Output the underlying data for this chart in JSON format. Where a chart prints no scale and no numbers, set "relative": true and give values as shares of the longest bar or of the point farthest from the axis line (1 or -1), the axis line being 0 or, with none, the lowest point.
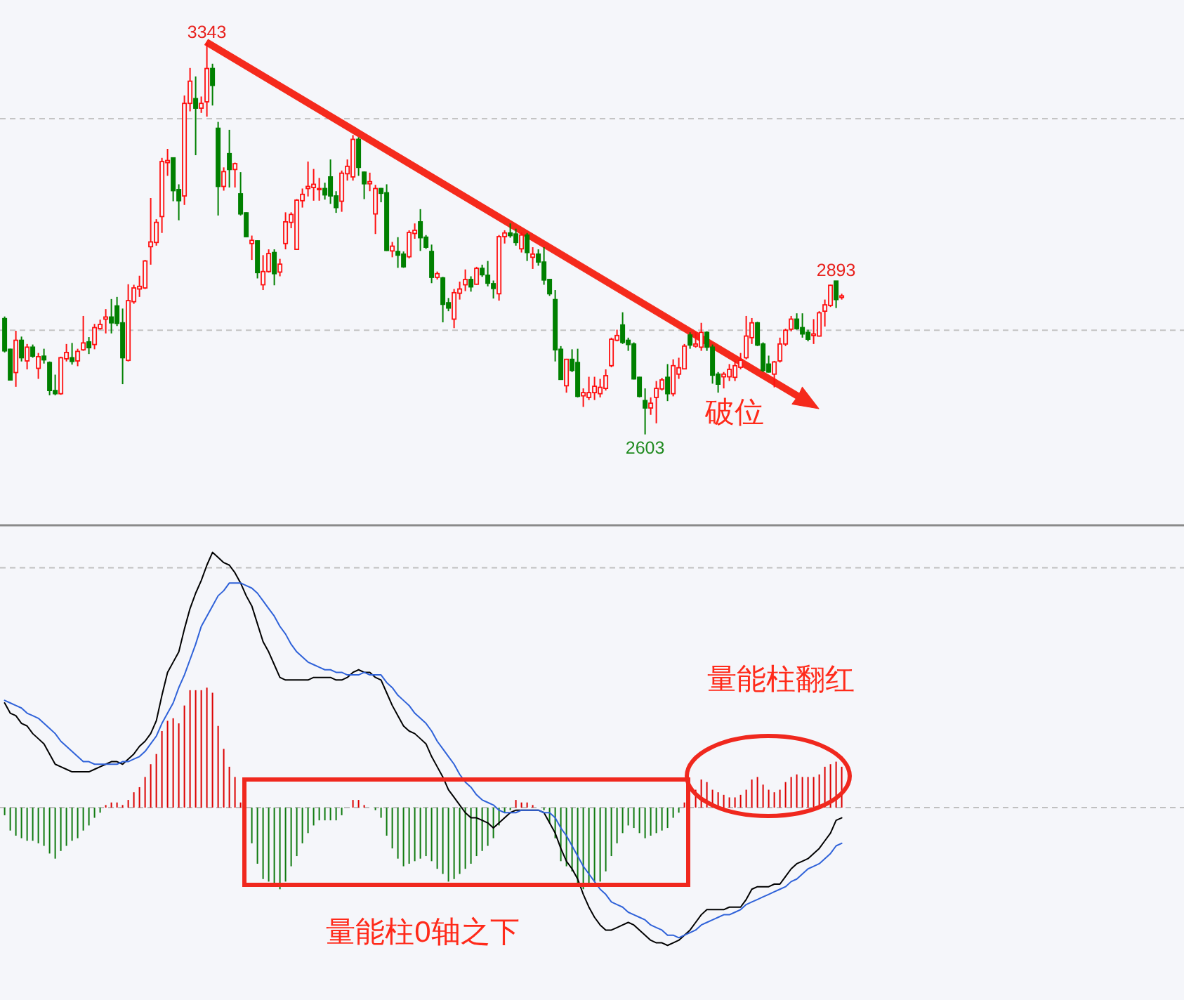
{
  "chart_data": [
    {
      "type": "candlestick",
      "categories": [
        null,
        null,
        null,
        null,
        null,
        null,
        null,
        null,
        null,
        null,
        null,
        null,
        null,
        null,
        null,
        null,
        null,
        null,
        null,
        null,
        null,
        null,
        null,
        null,
        null,
        null,
        null,
        null,
        null,
        null,
        null,
        null,
        null,
        null,
        null,
        null,
        null,
        null,
        null,
        null,
        null,
        null,
        null,
        null,
        null,
        null,
        null,
        null,
        null,
        null,
        null,
        null,
        null,
        null,
        null,
        null,
        null,
        null,
        null,
        null,
        null,
        null,
        null,
        null,
        null,
        null,
        null,
        null,
        null,
        null,
        null,
        null,
        null,
        null,
        null,
        null,
        null,
        null,
        null,
        null,
        null,
        null,
        null,
        null,
        null,
        null,
        null,
        null,
        null,
        null,
        null,
        null,
        null,
        null,
        null,
        null,
        null,
        null,
        null,
        null,
        null,
        null,
        null,
        null,
        null,
        null,
        null,
        null,
        null,
        null,
        null,
        null,
        null,
        null,
        null,
        null,
        null,
        null,
        null,
        null,
        null,
        null,
        null,
        null,
        null,
        null,
        null,
        null,
        null,
        null,
        null,
        null,
        null,
        null,
        null,
        null,
        null,
        null,
        null,
        null,
        null,
        null,
        null,
        null,
        null,
        null,
        null,
        null,
        null,
        null
      ],
      "ohlc": [
        [
          2822,
          2826,
          2758,
          2761
        ],
        [
          2764,
          2765,
          2706,
          2706
        ],
        [
          2720,
          2799,
          2693,
          2781
        ],
        [
          2781,
          2788,
          2741,
          2748
        ],
        [
          2742,
          2774,
          2726,
          2768
        ],
        [
          2768,
          2773,
          2748,
          2751
        ],
        [
          2728,
          2757,
          2708,
          2750
        ],
        [
          2751,
          2765,
          2737,
          2744
        ],
        [
          2739,
          2741,
          2677,
          2686
        ],
        [
          2686,
          2716,
          2677,
          2680
        ],
        [
          2680,
          2750,
          2678,
          2748
        ],
        [
          2746,
          2774,
          2741,
          2758
        ],
        [
          2748,
          2776,
          2735,
          2741
        ],
        [
          2742,
          2765,
          2732,
          2760
        ],
        [
          2763,
          2827,
          2761,
          2776
        ],
        [
          2778,
          2787,
          2755,
          2767
        ],
        [
          2773,
          2812,
          2764,
          2805
        ],
        [
          2803,
          2820,
          2801,
          2811
        ],
        [
          2821,
          2840,
          2794,
          2825
        ],
        [
          2825,
          2859,
          2794,
          2814
        ],
        [
          2846,
          2863,
          2808,
          2813
        ],
        [
          2814,
          2841,
          2698,
          2748
        ],
        [
          2743,
          2887,
          2741,
          2856
        ],
        [
          2854,
          2886,
          2850,
          2880
        ],
        [
          2878,
          2903,
          2863,
          2883
        ],
        [
          2880,
          2933,
          2878,
          2931
        ],
        [
          2958,
          3050,
          2924,
          2967
        ],
        [
          2966,
          3010,
          2960,
          3004
        ],
        [
          3015,
          3126,
          2984,
          3119
        ],
        [
          3117,
          3143,
          3092,
          3121
        ],
        [
          3126,
          3127,
          3044,
          3064
        ],
        [
          3066,
          3076,
          3008,
          3045
        ],
        [
          3054,
          3244,
          3037,
          3229
        ],
        [
          3229,
          3296,
          3214,
          3271
        ],
        [
          3238,
          3280,
          3131,
          3220
        ],
        [
          3220,
          3242,
          3211,
          3229
        ],
        [
          3232,
          3343,
          3204,
          3295
        ],
        [
          3295,
          3304,
          3225,
          3263
        ],
        [
          3182,
          3194,
          3017,
          3072
        ],
        [
          3072,
          3108,
          3064,
          3100
        ],
        [
          3134,
          3179,
          3070,
          3104
        ],
        [
          3104,
          3117,
          3070,
          3115
        ],
        [
          3058,
          3099,
          3017,
          3020
        ],
        [
          3022,
          3023,
          2976,
          2977
        ],
        [
          2964,
          2979,
          2933,
          2970
        ],
        [
          2969,
          2970,
          2898,
          2909
        ],
        [
          2886,
          2942,
          2876,
          2911
        ],
        [
          2911,
          2953,
          2909,
          2945
        ],
        [
          2947,
          2953,
          2885,
          2907
        ],
        [
          2910,
          2935,
          2902,
          2925
        ],
        [
          2964,
          3023,
          2953,
          3005
        ],
        [
          3004,
          3023,
          2993,
          3019
        ],
        [
          2953,
          3048,
          2952,
          3046
        ],
        [
          3045,
          3068,
          3032,
          3057
        ],
        [
          3068,
          3119,
          3053,
          3072
        ],
        [
          3070,
          3105,
          3045,
          3076
        ],
        [
          3066,
          3088,
          3045,
          3068
        ],
        [
          3068,
          3079,
          3047,
          3056
        ],
        [
          3090,
          3123,
          3039,
          3054
        ],
        [
          3054,
          3063,
          3022,
          3032
        ],
        [
          3044,
          3102,
          3024,
          3097
        ],
        [
          3096,
          3123,
          3083,
          3110
        ],
        [
          3090,
          3169,
          3083,
          3161
        ],
        [
          3161,
          3165,
          3092,
          3108
        ],
        [
          3099,
          3100,
          3048,
          3077
        ],
        [
          3077,
          3098,
          3063,
          3081
        ],
        [
          3020,
          3075,
          2982,
          3068
        ],
        [
          3068,
          3069,
          3042,
          3059
        ],
        [
          3060,
          3076,
          2950,
          2951
        ],
        [
          2950,
          2967,
          2938,
          2959
        ],
        [
          2949,
          2976,
          2918,
          2942
        ],
        [
          2944,
          2949,
          2918,
          2920
        ],
        [
          2939,
          2989,
          2936,
          2985
        ],
        [
          2983,
          3002,
          2973,
          2989
        ],
        [
          3005,
          3029,
          2950,
          2975
        ],
        [
          2976,
          2980,
          2954,
          2957
        ],
        [
          2949,
          2962,
          2889,
          2900
        ],
        [
          2900,
          2911,
          2896,
          2907
        ],
        [
          2899,
          2901,
          2815,
          2849
        ],
        [
          2852,
          2861,
          2836,
          2842
        ],
        [
          2821,
          2878,
          2804,
          2871
        ],
        [
          2870,
          2892,
          2858,
          2878
        ],
        [
          2886,
          2915,
          2874,
          2896
        ],
        [
          2896,
          2902,
          2873,
          2882
        ],
        [
          2887,
          2920,
          2886,
          2917
        ],
        [
          2917,
          2924,
          2901,
          2905
        ],
        [
          2904,
          2931,
          2883,
          2889
        ],
        [
          2888,
          2894,
          2860,
          2879
        ],
        [
          2869,
          2980,
          2856,
          2977
        ],
        [
          2977,
          2989,
          2964,
          2984
        ],
        [
          2984,
          3002,
          2975,
          2979
        ],
        [
          2982,
          2992,
          2960,
          2966
        ],
        [
          2954,
          2985,
          2947,
          2980
        ],
        [
          2980,
          2984,
          2931,
          2947
        ],
        [
          2938,
          2957,
          2916,
          2944
        ],
        [
          2944,
          2953,
          2922,
          2929
        ],
        [
          2929,
          2957,
          2886,
          2895
        ],
        [
          2896,
          2897,
          2865,
          2869
        ],
        [
          2858,
          2876,
          2741,
          2763
        ],
        [
          2764,
          2770,
          2706,
          2707
        ],
        [
          2695,
          2746,
          2682,
          2745
        ],
        [
          2745,
          2764,
          2721,
          2724
        ],
        [
          2739,
          2765,
          2673,
          2675
        ],
        [
          2676,
          2690,
          2655,
          2682
        ],
        [
          2673,
          2712,
          2668,
          2682
        ],
        [
          2682,
          2712,
          2668,
          2694
        ],
        [
          2680,
          2708,
          2673,
          2692
        ],
        [
          2690,
          2726,
          2686,
          2714
        ],
        [
          2733,
          2786,
          2730,
          2783
        ],
        [
          2781,
          2801,
          2779,
          2790
        ],
        [
          2810,
          2834,
          2774,
          2777
        ],
        [
          2781,
          2786,
          2761,
          2773
        ],
        [
          2774,
          2777,
          2707,
          2708
        ],
        [
          2711,
          2712,
          2673,
          2675
        ],
        [
          2667,
          2690,
          2603,
          2653
        ],
        [
          2653,
          2673,
          2640,
          2662
        ],
        [
          2673,
          2704,
          2624,
          2690
        ],
        [
          2689,
          2710,
          2686,
          2706
        ],
        [
          2711,
          2736,
          2666,
          2680
        ],
        [
          2680,
          2745,
          2675,
          2733
        ],
        [
          2717,
          2748,
          2708,
          2729
        ],
        [
          2727,
          2774,
          2726,
          2770
        ],
        [
          2791,
          2796,
          2765,
          2772
        ],
        [
          2770,
          2796,
          2767,
          2774
        ],
        [
          2768,
          2814,
          2761,
          2796
        ],
        [
          2796,
          2798,
          2761,
          2768
        ],
        [
          2768,
          2773,
          2699,
          2715
        ],
        [
          2717,
          2721,
          2682,
          2698
        ],
        [
          2712,
          2721,
          2690,
          2717
        ],
        [
          2712,
          2736,
          2704,
          2726
        ],
        [
          2711,
          2742,
          2704,
          2733
        ],
        [
          2730,
          2757,
          2726,
          2743
        ],
        [
          2748,
          2827,
          2745,
          2789
        ],
        [
          2786,
          2823,
          2774,
          2814
        ],
        [
          2814,
          2816,
          2770,
          2772
        ],
        [
          2774,
          2777,
          2721,
          2724
        ],
        [
          2736,
          2752,
          2720,
          2721
        ],
        [
          2717,
          2742,
          2692,
          2740
        ],
        [
          2742,
          2786,
          2739,
          2774
        ],
        [
          2774,
          2803,
          2770,
          2800
        ],
        [
          2802,
          2827,
          2798,
          2821
        ],
        [
          2821,
          2832,
          2801,
          2803
        ],
        [
          2805,
          2832,
          2786,
          2793
        ],
        [
          2796,
          2801,
          2779,
          2783
        ],
        [
          2790,
          2821,
          2774,
          2793
        ],
        [
          2789,
          2836,
          2788,
          2833
        ],
        [
          2836,
          2858,
          2807,
          2848
        ],
        [
          2847,
          2886,
          2844,
          2885
        ],
        [
          2893,
          2893,
          2842,
          2858
        ],
        [
          2862,
          2869,
          2858,
          2865
        ]
      ],
      "yticks": [
        {
          "value": 3200,
          "label": null
        },
        {
          "value": 2800,
          "label": null
        }
      ],
      "grid": "y",
      "annotations": [
        {
          "text": "3343",
          "y": 3343
        },
        {
          "text": "2893",
          "y": 2893
        },
        {
          "text": "2603",
          "y": 2603
        },
        "破位"
      ]
    },
    {
      "type": "bar",
      "relative": true,
      "categories": [
        null,
        null,
        null,
        null,
        null,
        null,
        null,
        null,
        null,
        null,
        null,
        null,
        null,
        null,
        null,
        null,
        null,
        null,
        null,
        null,
        null,
        null,
        null,
        null,
        null,
        null,
        null,
        null,
        null,
        null,
        null,
        null,
        null,
        null,
        null,
        null,
        null,
        null,
        null,
        null,
        null,
        null,
        null,
        null,
        null,
        null,
        null,
        null,
        null,
        null,
        null,
        null,
        null,
        null,
        null,
        null,
        null,
        null,
        null,
        null,
        null,
        null,
        null,
        null,
        null,
        null,
        null,
        null,
        null,
        null,
        null,
        null,
        null,
        null,
        null,
        null,
        null,
        null,
        null,
        null,
        null,
        null,
        null,
        null,
        null,
        null,
        null,
        null,
        null,
        null,
        null,
        null,
        null,
        null,
        null,
        null,
        null,
        null,
        null,
        null,
        null,
        null,
        null,
        null,
        null,
        null,
        null,
        null,
        null,
        null,
        null,
        null,
        null,
        null,
        null,
        null,
        null,
        null,
        null,
        null,
        null,
        null,
        null,
        null,
        null,
        null,
        null,
        null,
        null,
        null,
        null,
        null,
        null,
        null,
        null,
        null,
        null,
        null,
        null,
        null,
        null,
        null,
        null,
        null,
        null,
        null,
        null,
        null,
        null,
        null
      ],
      "series": [
        {
          "type": "bar",
          "color": "#dd0000",
          "values": [
            null,
            null,
            null,
            null,
            null,
            null,
            null,
            null,
            null,
            null,
            null,
            null,
            null,
            null,
            null,
            null,
            null,
            null,
            0.01,
            0.02,
            0.02,
            0.01,
            0.03,
            0.06,
            0.08,
            0.12,
            0.17,
            0.21,
            0.3,
            0.34,
            0.35,
            0.33,
            0.4,
            0.46,
            0.46,
            0.46,
            0.47,
            0.45,
            0.32,
            0.23,
            0.16,
            0.12,
            0.02,
            null,
            null,
            null,
            null,
            null,
            null,
            null,
            null,
            null,
            null,
            null,
            null,
            null,
            null,
            null,
            null,
            null,
            null,
            null,
            0.03,
            0.03,
            0.01,
            null,
            null,
            null,
            null,
            null,
            null,
            null,
            null,
            null,
            null,
            null,
            null,
            null,
            null,
            null,
            null,
            null,
            null,
            null,
            null,
            null,
            null,
            null,
            null,
            null,
            null,
            0.03,
            0.02,
            0.02,
            0.01,
            null,
            null,
            null,
            null,
            null,
            null,
            null,
            null,
            null,
            null,
            null,
            null,
            null,
            null,
            null,
            null,
            null,
            null,
            null,
            null,
            null,
            null,
            null,
            null,
            null,
            null,
            0.02,
            null,
            0.07,
            0.11,
            0.1,
            0.07,
            0.06,
            0.05,
            0.04,
            0.04,
            0.05,
            0.07,
            0.11,
            0.12,
            0.09,
            0.07,
            0.06,
            0.07,
            0.1,
            0.12,
            0.13,
            0.12,
            0.12,
            0.12,
            0.13,
            0.16,
            0.17,
            0.18,
            0.16
          ]
        },
        {
          "type": "bar",
          "color": "#0f7a0f",
          "values": [
            -0.03,
            -0.09,
            -0.11,
            -0.12,
            -0.13,
            -0.13,
            -0.14,
            -0.15,
            -0.18,
            -0.2,
            -0.17,
            -0.15,
            -0.13,
            -0.12,
            -0.09,
            -0.07,
            -0.04,
            -0.02,
            null,
            null,
            null,
            null,
            null,
            null,
            null,
            null,
            null,
            null,
            null,
            null,
            null,
            null,
            null,
            null,
            null,
            null,
            null,
            null,
            null,
            null,
            null,
            null,
            null,
            null,
            -0.14,
            -0.22,
            -0.28,
            -0.29,
            -0.31,
            -0.32,
            -0.29,
            -0.23,
            -0.19,
            -0.14,
            -0.1,
            -0.07,
            -0.05,
            -0.05,
            -0.05,
            -0.05,
            -0.03,
            null,
            null,
            null,
            null,
            null,
            -0.01,
            -0.04,
            -0.11,
            -0.16,
            -0.2,
            -0.23,
            -0.22,
            -0.21,
            -0.2,
            -0.19,
            -0.21,
            -0.24,
            -0.26,
            -0.29,
            -0.28,
            -0.26,
            -0.24,
            -0.22,
            -0.19,
            -0.17,
            -0.15,
            -0.12,
            -0.07,
            -0.02,
            -0.01,
            null,
            null,
            null,
            null,
            null,
            -0.01,
            -0.06,
            -0.12,
            -0.21,
            -0.23,
            -0.25,
            -0.31,
            -0.32,
            -0.31,
            -0.29,
            -0.29,
            -0.25,
            -0.19,
            -0.14,
            -0.1,
            -0.07,
            -0.08,
            -0.1,
            -0.12,
            -0.11,
            -0.1,
            -0.09,
            -0.08,
            -0.04,
            -0.02,
            null,
            null,
            null,
            null,
            null,
            null,
            null,
            null,
            null,
            null,
            null,
            null,
            null,
            null,
            null,
            null,
            null,
            null,
            null,
            null,
            null,
            null,
            null,
            null,
            null,
            null,
            null,
            null,
            null
          ]
        },
        {
          "type": "line",
          "color": "#000000",
          "values": [
            0.41,
            0.37,
            0.36,
            0.33,
            0.32,
            0.29,
            0.27,
            0.25,
            0.21,
            0.17,
            0.16,
            0.15,
            0.14,
            0.14,
            0.14,
            0.14,
            0.15,
            0.16,
            0.17,
            0.18,
            0.18,
            0.17,
            0.19,
            0.21,
            0.24,
            0.26,
            0.29,
            0.34,
            0.44,
            0.53,
            0.57,
            0.61,
            0.7,
            0.78,
            0.84,
            0.89,
            0.95,
            1,
            0.98,
            0.96,
            0.95,
            0.92,
            0.88,
            0.83,
            0.79,
            0.72,
            0.65,
            0.61,
            0.56,
            0.51,
            0.5,
            0.5,
            0.5,
            0.5,
            0.5,
            0.51,
            0.51,
            0.51,
            0.51,
            0.5,
            0.5,
            0.51,
            0.53,
            0.54,
            0.53,
            0.53,
            0.51,
            0.5,
            0.45,
            0.4,
            0.36,
            0.32,
            0.3,
            0.29,
            0.27,
            0.25,
            0.2,
            0.16,
            0.12,
            0.07,
            0.04,
            0.01,
            -0.02,
            -0.04,
            -0.04,
            -0.05,
            -0.06,
            -0.08,
            -0.06,
            -0.04,
            -0.02,
            -0.01,
            -0.01,
            -0.01,
            -0.01,
            -0.01,
            -0.02,
            -0.06,
            -0.1,
            -0.16,
            -0.21,
            -0.24,
            -0.28,
            -0.34,
            -0.39,
            -0.43,
            -0.46,
            -0.48,
            -0.48,
            -0.47,
            -0.46,
            -0.45,
            -0.46,
            -0.48,
            -0.5,
            -0.52,
            -0.53,
            -0.53,
            -0.54,
            -0.53,
            -0.52,
            -0.5,
            -0.48,
            -0.45,
            -0.42,
            -0.4,
            -0.4,
            -0.4,
            -0.4,
            -0.39,
            -0.39,
            -0.39,
            -0.36,
            -0.32,
            -0.31,
            -0.31,
            -0.31,
            -0.3,
            -0.3,
            -0.27,
            -0.24,
            -0.22,
            -0.21,
            -0.2,
            -0.18,
            -0.16,
            -0.13,
            -0.1,
            -0.05,
            -0.04
          ]
        },
        {
          "type": "line",
          "color": "#2f62d9",
          "values": [
            0.42,
            0.41,
            0.4,
            0.39,
            0.37,
            0.36,
            0.35,
            0.33,
            0.31,
            0.29,
            0.26,
            0.24,
            0.22,
            0.2,
            0.18,
            0.18,
            0.17,
            0.17,
            0.17,
            0.17,
            0.17,
            0.18,
            0.18,
            0.19,
            0.2,
            0.22,
            0.25,
            0.28,
            0.33,
            0.37,
            0.41,
            0.47,
            0.52,
            0.58,
            0.64,
            0.71,
            0.75,
            0.79,
            0.83,
            0.85,
            0.88,
            0.88,
            0.88,
            0.87,
            0.86,
            0.84,
            0.81,
            0.78,
            0.75,
            0.71,
            0.68,
            0.64,
            0.61,
            0.59,
            0.57,
            0.56,
            0.55,
            0.54,
            0.54,
            0.53,
            0.53,
            0.52,
            0.52,
            0.52,
            0.53,
            0.52,
            0.52,
            0.52,
            0.49,
            0.47,
            0.44,
            0.42,
            0.4,
            0.37,
            0.35,
            0.33,
            0.3,
            0.26,
            0.23,
            0.2,
            0.17,
            0.13,
            0.1,
            0.08,
            0.05,
            0.03,
            0.02,
            0.01,
            -0.01,
            -0.02,
            -0.02,
            -0.02,
            -0.01,
            -0.01,
            -0.01,
            -0.01,
            -0.02,
            -0.02,
            -0.04,
            -0.08,
            -0.11,
            -0.15,
            -0.19,
            -0.23,
            -0.26,
            -0.29,
            -0.32,
            -0.34,
            -0.37,
            -0.38,
            -0.39,
            -0.41,
            -0.42,
            -0.43,
            -0.44,
            -0.46,
            -0.47,
            -0.48,
            -0.5,
            -0.5,
            -0.51,
            -0.5,
            -0.49,
            -0.48,
            -0.46,
            -0.45,
            -0.44,
            -0.43,
            -0.42,
            -0.42,
            -0.41,
            -0.4,
            -0.38,
            -0.37,
            -0.36,
            -0.35,
            -0.34,
            -0.33,
            -0.32,
            -0.31,
            -0.29,
            -0.28,
            -0.26,
            -0.24,
            -0.23,
            -0.22,
            -0.2,
            -0.18,
            -0.15,
            -0.14
          ]
        }
      ],
      "ref_lines": [
        {
          "axis": "y",
          "value": 0,
          "line_style": "dashed",
          "color": "#c0c0c0"
        },
        {
          "axis": "y",
          "value": 0.94,
          "line_style": "dashed",
          "color": "#c0c0c0"
        }
      ],
      "annotations": [
        "量能柱翻红",
        "量能柱0轴之下"
      ]
    }
  ]
}
